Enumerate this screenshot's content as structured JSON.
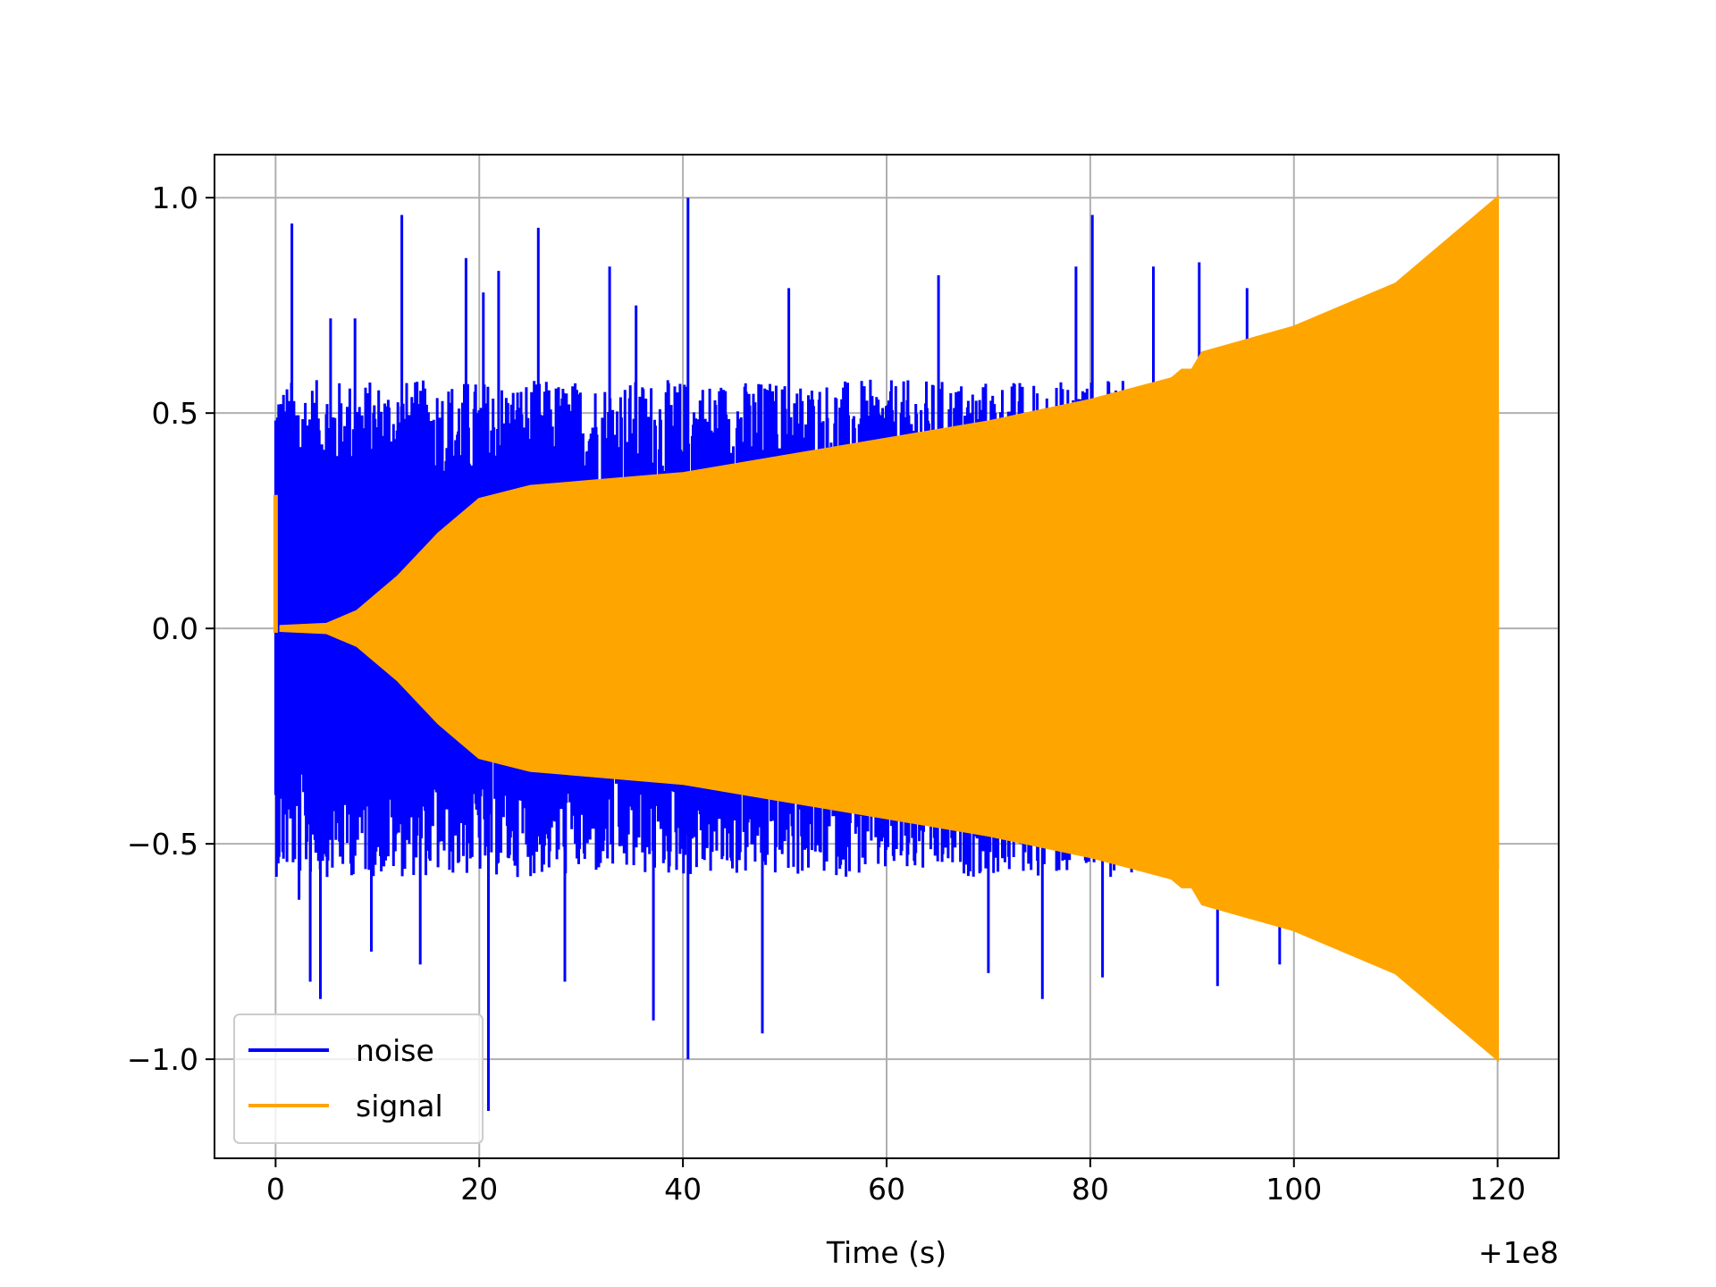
{
  "chart_data": {
    "type": "line",
    "title": "",
    "xlabel": "Time (s)",
    "ylabel": "",
    "x_offset_label": "+1e8",
    "xlim": [
      -6,
      126
    ],
    "ylim": [
      -1.23,
      1.1
    ],
    "x_ticks": [
      0,
      20,
      40,
      60,
      80,
      100,
      120
    ],
    "x_tick_labels": [
      "0",
      "20",
      "40",
      "60",
      "80",
      "100",
      "120"
    ],
    "y_ticks": [
      1.0,
      0.5,
      0.0,
      -0.5,
      -1.0
    ],
    "y_tick_labels": [
      "1.0",
      "0.5",
      "0.0",
      "−0.5",
      "−1.0"
    ],
    "grid": true,
    "legend_position": "lower-left",
    "series": [
      {
        "name": "noise",
        "color": "#0000ff",
        "description_values": {
          "x_range": [
            0,
            120
          ],
          "typical_peak_abs": 0.55,
          "max": 1.0,
          "min": -1.12,
          "spikes": [
            [
              0.3,
              0.52
            ],
            [
              1.6,
              0.94
            ],
            [
              2.3,
              -0.63
            ],
            [
              3.4,
              -0.82
            ],
            [
              4.4,
              -0.86
            ],
            [
              5.4,
              0.72
            ],
            [
              7.8,
              0.72
            ],
            [
              9.4,
              -0.75
            ],
            [
              12.4,
              0.96
            ],
            [
              14.2,
              -0.78
            ],
            [
              18.7,
              0.86
            ],
            [
              20.4,
              0.78
            ],
            [
              20.9,
              -1.12
            ],
            [
              21.9,
              0.83
            ],
            [
              25.8,
              0.93
            ],
            [
              28.4,
              -0.82
            ],
            [
              32.8,
              0.84
            ],
            [
              35.4,
              0.75
            ],
            [
              37.1,
              -0.91
            ],
            [
              40.5,
              1.0
            ],
            [
              40.5,
              -1.0
            ],
            [
              47.8,
              -0.94
            ],
            [
              50.4,
              0.79
            ],
            [
              65.1,
              0.82
            ],
            [
              70.0,
              -0.8
            ],
            [
              75.3,
              -0.86
            ],
            [
              78.6,
              0.84
            ],
            [
              80.2,
              0.96
            ],
            [
              81.2,
              -0.81
            ],
            [
              86.2,
              0.84
            ],
            [
              90.7,
              0.85
            ],
            [
              92.5,
              -0.83
            ],
            [
              95.4,
              0.79
            ],
            [
              98.6,
              -0.78
            ],
            [
              104.2,
              0.72
            ]
          ]
        }
      },
      {
        "name": "signal",
        "color": "#ffa500",
        "description_values": {
          "x_range": [
            0,
            120
          ],
          "initial_transient": [
            [
              0,
              0.31
            ]
          ],
          "envelope": [
            [
              0.5,
              0.005
            ],
            [
              5,
              0.01
            ],
            [
              8,
              0.04
            ],
            [
              12,
              0.12
            ],
            [
              16,
              0.22
            ],
            [
              20,
              0.3
            ],
            [
              25,
              0.33
            ],
            [
              30,
              0.34
            ],
            [
              40,
              0.36
            ],
            [
              50,
              0.4
            ],
            [
              60,
              0.44
            ],
            [
              70,
              0.48
            ],
            [
              80,
              0.53
            ],
            [
              88,
              0.58
            ],
            [
              89,
              0.6
            ],
            [
              90,
              0.6
            ],
            [
              91,
              0.64
            ],
            [
              100,
              0.7
            ],
            [
              110,
              0.8
            ],
            [
              120,
              1.0
            ]
          ]
        }
      }
    ]
  }
}
